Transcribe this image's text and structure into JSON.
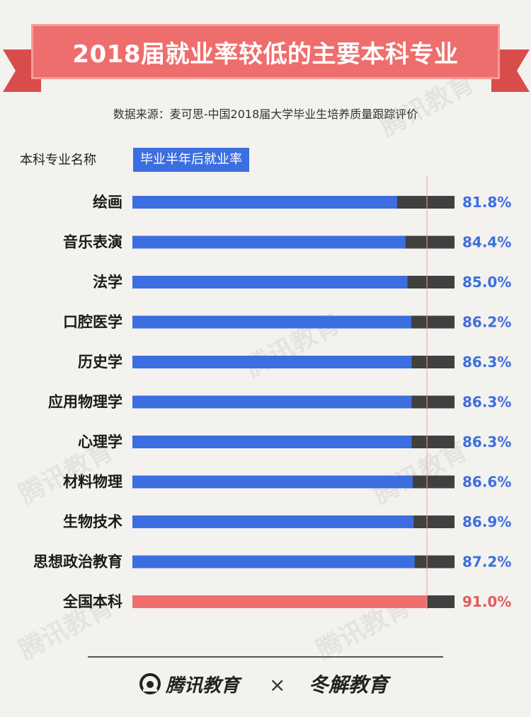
{
  "header": {
    "title": "2018届就业率较低的主要本科专业",
    "source": "数据来源：麦可思-中国2018届大学毕业生培养质量跟踪评价"
  },
  "columns": {
    "name_header": "本科专业名称",
    "rate_header": "毕业半年后就业率"
  },
  "colors": {
    "banner": "#ee6e6d",
    "bar": "#3c6ee0",
    "highlight": "#ee6e6d",
    "remainder": "#404040",
    "label": "#3c6ee0",
    "highlight_label": "#e05c5c",
    "reference_line": "#f0a0a0"
  },
  "footer": {
    "brand_left": "腾讯教育",
    "separator": "×",
    "brand_right": "冬解教育"
  },
  "watermark": "腾讯教育",
  "chart_data": {
    "type": "bar",
    "orientation": "horizontal",
    "xlim": [
      0,
      100
    ],
    "reference_value": 91.0,
    "categories": [
      "绘画",
      "音乐表演",
      "法学",
      "口腔医学",
      "历史学",
      "应用物理学",
      "心理学",
      "材料物理",
      "生物技术",
      "思想政治教育",
      "全国本科"
    ],
    "values": [
      81.8,
      84.4,
      85.0,
      86.2,
      86.3,
      86.3,
      86.3,
      86.6,
      86.9,
      87.2,
      91.0
    ],
    "labels": [
      "81.8%",
      "84.4%",
      "85.0%",
      "86.2%",
      "86.3%",
      "86.3%",
      "86.3%",
      "86.6%",
      "86.9%",
      "87.2%",
      "91.0%"
    ],
    "highlight_index": 10
  }
}
